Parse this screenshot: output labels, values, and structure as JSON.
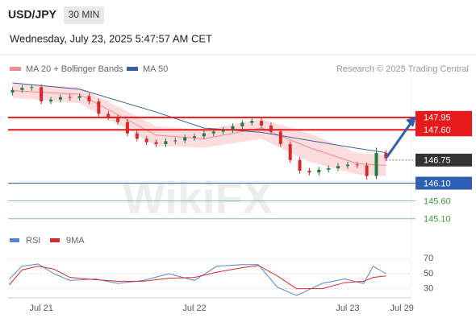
{
  "header": {
    "symbol": "USD/JPY",
    "timeframe": "30 MIN",
    "datetime": "Wednesday, July 23, 2025 5:47:57 AM CET",
    "copyright": "Research © 2025 Trading Central",
    "watermark": "WikiFX"
  },
  "chart_data": [
    {
      "type": "candlestick",
      "x": [
        -4.5,
        -3,
        -1.5,
        0,
        1.5,
        3,
        4.5,
        6,
        7.5,
        9,
        10.5,
        12,
        13.5,
        15,
        16.5,
        18,
        19.5,
        21,
        22.5,
        24,
        25.5,
        27,
        28.5,
        30,
        31.5,
        33,
        34.5,
        36,
        37.5,
        39,
        40.5,
        42,
        43.5,
        45,
        46.5,
        48,
        49.5,
        51,
        52.5,
        54
      ],
      "open": [
        148.65,
        148.72,
        148.78,
        148.8,
        148.4,
        148.45,
        148.52,
        148.5,
        148.55,
        148.4,
        148.05,
        147.95,
        147.82,
        147.5,
        147.35,
        147.25,
        147.2,
        147.28,
        147.3,
        147.38,
        147.42,
        147.5,
        147.55,
        147.6,
        147.7,
        147.8,
        147.85,
        147.72,
        147.55,
        147.2,
        146.75,
        146.45,
        146.4,
        146.48,
        146.52,
        146.58,
        146.62,
        146.6,
        146.3,
        146.95
      ],
      "high": [
        148.8,
        148.86,
        148.88,
        148.88,
        148.53,
        148.6,
        148.6,
        148.63,
        148.63,
        148.48,
        148.13,
        148.03,
        147.9,
        147.58,
        147.43,
        147.33,
        147.36,
        147.38,
        147.46,
        147.5,
        147.58,
        147.63,
        147.68,
        147.78,
        147.88,
        147.93,
        147.93,
        147.8,
        147.63,
        147.28,
        146.83,
        146.53,
        146.56,
        146.6,
        146.66,
        146.7,
        146.7,
        146.68,
        147.1,
        147.03
      ],
      "low": [
        148.57,
        148.64,
        148.7,
        148.32,
        148.32,
        148.37,
        148.42,
        148.42,
        148.32,
        147.97,
        147.87,
        147.74,
        147.42,
        147.27,
        147.17,
        147.12,
        147.12,
        147.2,
        147.22,
        147.3,
        147.34,
        147.42,
        147.47,
        147.52,
        147.62,
        147.72,
        147.64,
        147.47,
        147.12,
        146.67,
        146.37,
        146.32,
        146.32,
        146.4,
        146.44,
        146.5,
        146.52,
        146.2,
        146.22,
        146.72
      ],
      "close": [
        148.72,
        148.78,
        148.8,
        148.4,
        148.45,
        148.52,
        148.5,
        148.55,
        148.4,
        148.05,
        147.95,
        147.82,
        147.5,
        147.35,
        147.25,
        147.2,
        147.28,
        147.3,
        147.38,
        147.42,
        147.5,
        147.55,
        147.6,
        147.7,
        147.8,
        147.85,
        147.72,
        147.55,
        147.2,
        146.75,
        146.45,
        146.4,
        146.48,
        146.52,
        146.58,
        146.62,
        146.6,
        146.3,
        146.95,
        146.8
      ],
      "up_color": "#1f7a3f",
      "down_color": "#d62a2a",
      "xlim": [
        -5.2,
        58
      ],
      "ylim": [
        144.8,
        149.1
      ],
      "xticks": [
        {
          "value": 0,
          "label": "Jul 21"
        },
        {
          "value": 24,
          "label": "Jul 22"
        },
        {
          "value": 48,
          "label": "Jul 23"
        },
        {
          "value": 56.5,
          "label": "Jul 29"
        }
      ],
      "series": [
        {
          "name": "MA 20 + Bollinger Bands",
          "color": "#f08a8e",
          "band_color": "#fbd3d5",
          "x": [
            -4.5,
            6,
            18,
            25.5,
            34.5,
            42,
            49.5,
            54
          ],
          "values": [
            148.7,
            148.6,
            147.45,
            147.35,
            147.65,
            147.1,
            146.65,
            146.6
          ],
          "upper": [
            148.9,
            148.8,
            147.7,
            147.6,
            147.9,
            147.5,
            146.95,
            146.9
          ],
          "lower": [
            148.5,
            148.35,
            147.15,
            147.1,
            147.35,
            146.7,
            146.35,
            146.3
          ]
        },
        {
          "name": "MA 50",
          "color": "#3a5fa0",
          "x": [
            -4.5,
            6,
            18,
            25.5,
            34.5,
            42,
            49.5,
            54
          ],
          "values": [
            148.92,
            148.74,
            148.1,
            147.65,
            147.53,
            147.3,
            147.08,
            146.96
          ]
        }
      ],
      "levels": [
        {
          "value": 147.95,
          "color": "#e8191c",
          "boxed": true,
          "line": "solid"
        },
        {
          "value": 147.6,
          "label": "147.60",
          "color": "#e8191c",
          "boxed": true,
          "line": "solid"
        },
        {
          "value": 146.75,
          "color": "#333333",
          "boxed": true,
          "line": "dotted"
        },
        {
          "value": 146.1,
          "label": "146.10",
          "color": "#2f5fb3",
          "boxed": true,
          "line": "solid"
        },
        {
          "value": 145.6,
          "label": "145.60",
          "color": "#3c9a3c",
          "boxed": false,
          "line": "thin"
        },
        {
          "value": 145.1,
          "label": "145.10",
          "color": "#3c9a3c",
          "boxed": false,
          "line": "thin"
        }
      ]
    },
    {
      "type": "line",
      "xlim": [
        -5.2,
        58
      ],
      "ylim": [
        20,
        80
      ],
      "yticks": [
        30,
        50,
        70
      ],
      "series": [
        {
          "name": "RSI",
          "color": "#5a82d6",
          "x": [
            -5,
            -3,
            -0.5,
            2,
            4.5,
            8.5,
            12,
            16,
            20,
            24,
            27.5,
            31.5,
            34,
            37,
            40,
            44,
            47.5,
            50.5,
            52,
            54
          ],
          "values": [
            43,
            60,
            63,
            50,
            41,
            43,
            37,
            41,
            50,
            41,
            60,
            62,
            62,
            32,
            21,
            37,
            43,
            37,
            60,
            50
          ]
        },
        {
          "name": "9MA",
          "color": "#d62a2a",
          "x": [
            -5,
            -3,
            -0.5,
            2,
            4.5,
            8.5,
            12,
            16,
            20,
            24,
            27.5,
            31.5,
            34,
            37,
            40,
            44,
            47.5,
            50.5,
            52,
            54
          ],
          "values": [
            35,
            55,
            60,
            56,
            45,
            42,
            40,
            40,
            44,
            45,
            52,
            58,
            61,
            47,
            30,
            30,
            38,
            40,
            45,
            47
          ]
        }
      ]
    }
  ]
}
